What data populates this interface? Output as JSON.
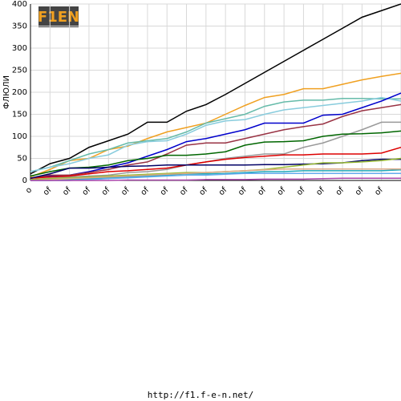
{
  "chart_data": {
    "type": "line",
    "logo": "F1EN",
    "y_label": "ФЛЮЛИ",
    "footer": "http://f1.f-e-n.net/",
    "categories": [
      "o",
      "of",
      "of",
      "of",
      "of",
      "of",
      "of",
      "of",
      "of",
      "of",
      "of",
      "of",
      "of",
      "of",
      "of",
      "of",
      "of",
      "of",
      "of",
      null
    ],
    "ylim": [
      0,
      400
    ],
    "yticks": [
      0,
      50,
      100,
      150,
      200,
      250,
      300,
      350,
      400
    ],
    "grid": true,
    "series": [
      {
        "color": "#000000",
        "values": [
          15,
          38,
          50,
          75,
          90,
          105,
          132,
          132,
          157,
          172,
          195,
          220,
          245,
          270,
          295,
          320,
          345,
          370,
          385,
          400
        ]
      },
      {
        "color": "#f0a020",
        "values": [
          8,
          25,
          45,
          50,
          70,
          78,
          95,
          110,
          120,
          130,
          150,
          170,
          188,
          195,
          208,
          208,
          218,
          228,
          236,
          243
        ]
      },
      {
        "color": "#66bbaa",
        "values": [
          20,
          30,
          45,
          60,
          70,
          85,
          90,
          95,
          110,
          130,
          140,
          150,
          168,
          178,
          182,
          182,
          186,
          186,
          185,
          185
        ]
      },
      {
        "color": "#88ccdd",
        "values": [
          20,
          30,
          38,
          50,
          58,
          80,
          88,
          90,
          105,
          125,
          135,
          138,
          150,
          160,
          165,
          170,
          175,
          180,
          188,
          180
        ]
      },
      {
        "color": "#0000cc",
        "values": [
          5,
          10,
          12,
          20,
          30,
          40,
          55,
          70,
          88,
          95,
          105,
          115,
          130,
          130,
          130,
          148,
          150,
          165,
          180,
          198
        ]
      },
      {
        "color": "#993344",
        "values": [
          5,
          12,
          12,
          18,
          25,
          35,
          42,
          60,
          80,
          85,
          85,
          95,
          105,
          115,
          122,
          128,
          145,
          158,
          165,
          172
        ]
      },
      {
        "color": "#999999",
        "values": [
          2,
          5,
          8,
          10,
          12,
          18,
          20,
          25,
          35,
          42,
          50,
          55,
          60,
          60,
          75,
          85,
          100,
          115,
          132,
          132
        ]
      },
      {
        "color": "#006600",
        "values": [
          10,
          20,
          28,
          30,
          35,
          45,
          50,
          57,
          57,
          60,
          65,
          80,
          87,
          88,
          90,
          100,
          105,
          106,
          108,
          112
        ]
      },
      {
        "color": "#dd0000",
        "values": [
          5,
          8,
          10,
          15,
          20,
          22,
          25,
          28,
          35,
          42,
          48,
          52,
          55,
          58,
          58,
          60,
          60,
          60,
          62,
          75
        ]
      },
      {
        "color": "#000066",
        "values": [
          5,
          15,
          28,
          28,
          30,
          32,
          33,
          35,
          35,
          35,
          35,
          35,
          36,
          36,
          37,
          38,
          40,
          45,
          48,
          48
        ]
      },
      {
        "color": "#99bb33",
        "values": [
          2,
          4,
          6,
          8,
          10,
          12,
          14,
          16,
          18,
          18,
          20,
          22,
          25,
          30,
          35,
          40,
          40,
          42,
          45,
          50
        ]
      },
      {
        "color": "#22aabb",
        "values": [
          0,
          0,
          2,
          4,
          6,
          8,
          10,
          12,
          15,
          15,
          16,
          18,
          20,
          20,
          22,
          22,
          22,
          22,
          22,
          24
        ]
      },
      {
        "color": "#66aaee",
        "values": [
          0,
          0,
          0,
          2,
          4,
          6,
          8,
          10,
          12,
          12,
          14,
          16,
          16,
          16,
          16,
          16,
          16,
          16,
          16,
          16
        ]
      },
      {
        "color": "#ddaa88",
        "values": [
          0,
          2,
          4,
          6,
          8,
          10,
          12,
          14,
          16,
          18,
          20,
          22,
          24,
          26,
          26,
          26,
          26,
          26,
          26,
          26
        ]
      },
      {
        "color": "#aa44aa",
        "values": [
          0,
          0,
          0,
          0,
          0,
          1,
          1,
          1,
          1,
          2,
          2,
          2,
          3,
          3,
          3,
          4,
          5,
          5,
          5,
          5
        ]
      }
    ]
  }
}
